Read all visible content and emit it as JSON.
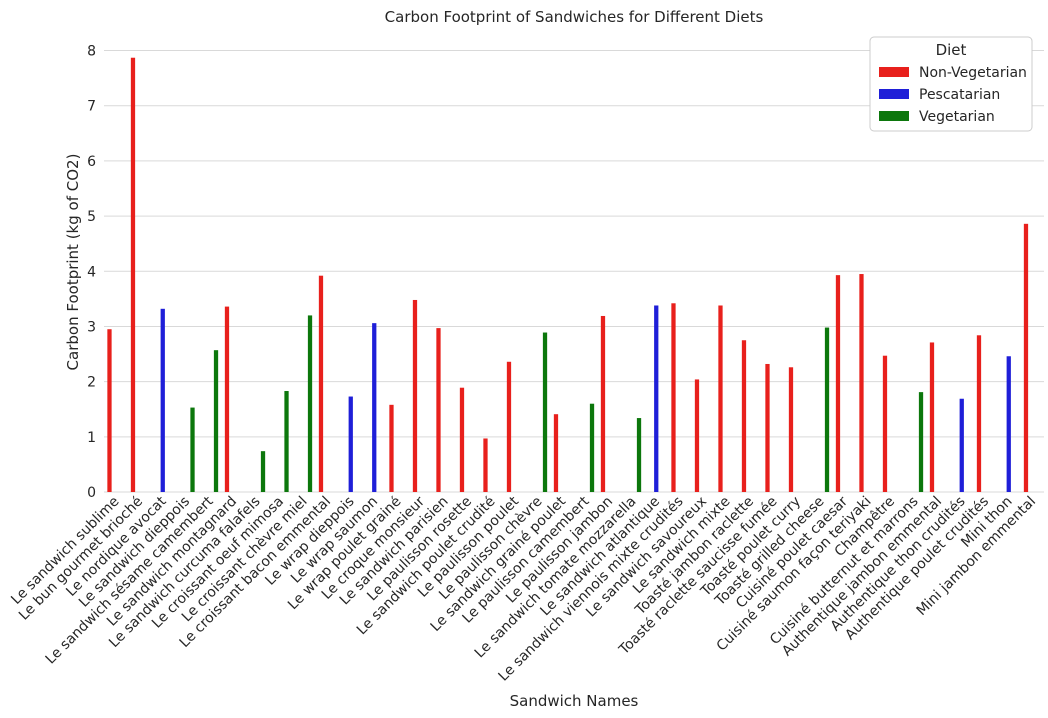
{
  "chart_data": {
    "type": "bar",
    "title": "Carbon Footprint of Sandwiches for Different Diets",
    "xlabel": "Sandwich Names",
    "ylabel": "Carbon Footprint (kg of CO2)",
    "ylim": [
      0,
      8.3
    ],
    "yticks": [
      0,
      1,
      2,
      3,
      4,
      5,
      6,
      7,
      8
    ],
    "grid": true,
    "legend_title": "Diet",
    "legend_position": "top-right",
    "colors": {
      "Non-Vegetarian": "#e8201c",
      "Pescatarian": "#1f1fd8",
      "Vegetarian": "#0c770c"
    },
    "series": [
      {
        "name": "Non-Vegetarian"
      },
      {
        "name": "Pescatarian"
      },
      {
        "name": "Vegetarian"
      }
    ],
    "categories": [
      "Le sandwich sublime",
      "Le bun gourmet brioché",
      "Le nordique avocat",
      "Le sandwich dieppois",
      "Le sandwich sésame camembert",
      "Le sandwich montagnard",
      "Le sandwich curcuma falafels",
      "Le croissant oeuf mimosa",
      "Le croissant chèvre miel",
      "Le croissant bacon emmental",
      "Le wrap dieppois",
      "Le wrap saumon",
      "Le wrap poulet grainé",
      "Le croque monsieur",
      "Le sandwich parisien",
      "Le paulisson rosette",
      "Le sandwich poulet crudité",
      "Le paulisson poulet",
      "Le paulisson  chèvre",
      "Le sandwich grainé poulet",
      "Le paulisson camembert",
      "Le paulisson jambon",
      "Le sandwich tomate mozzarella",
      "Le sandwich atlantique",
      "Le sandwich viennois mixte crudités",
      "Le sandwich savoureux",
      "Le sandwich mixte",
      "Toasté jambon raclette",
      "Toasté raclette saucisse fumée",
      "Toasté poulet curry",
      "Toasté grilled cheese",
      "Cuisiné poulet caesar",
      "Cuisiné saumon façon teriyaki",
      "Champêtre",
      "Cuisiné butternut et marrons",
      "Authentique jambon emmental",
      "Authentique thon crudités",
      "Authentique poulet crudités",
      "Mini thon",
      "Mini jambon emmental"
    ],
    "diets": [
      "Non-Vegetarian",
      "Non-Vegetarian",
      "Pescatarian",
      "Vegetarian",
      "Vegetarian",
      "Non-Vegetarian",
      "Vegetarian",
      "Vegetarian",
      "Vegetarian",
      "Non-Vegetarian",
      "Pescatarian",
      "Pescatarian",
      "Non-Vegetarian",
      "Non-Vegetarian",
      "Non-Vegetarian",
      "Non-Vegetarian",
      "Non-Vegetarian",
      "Non-Vegetarian",
      "Vegetarian",
      "Non-Vegetarian",
      "Vegetarian",
      "Non-Vegetarian",
      "Vegetarian",
      "Pescatarian",
      "Non-Vegetarian",
      "Non-Vegetarian",
      "Non-Vegetarian",
      "Non-Vegetarian",
      "Non-Vegetarian",
      "Non-Vegetarian",
      "Vegetarian",
      "Non-Vegetarian",
      "Non-Vegetarian",
      "Non-Vegetarian",
      "Vegetarian",
      "Non-Vegetarian",
      "Pescatarian",
      "Non-Vegetarian",
      "Pescatarian",
      "Non-Vegetarian"
    ],
    "values": [
      2.95,
      7.87,
      3.32,
      1.53,
      2.57,
      3.36,
      0.74,
      1.83,
      3.2,
      3.92,
      1.73,
      3.06,
      1.58,
      3.48,
      2.97,
      1.89,
      0.97,
      2.36,
      2.89,
      1.41,
      1.6,
      3.19,
      1.34,
      3.38,
      3.42,
      2.04,
      3.38,
      2.75,
      2.32,
      2.26,
      2.98,
      3.93,
      3.95,
      2.47,
      1.81,
      2.71,
      1.69,
      2.84,
      2.46,
      4.86
    ]
  }
}
